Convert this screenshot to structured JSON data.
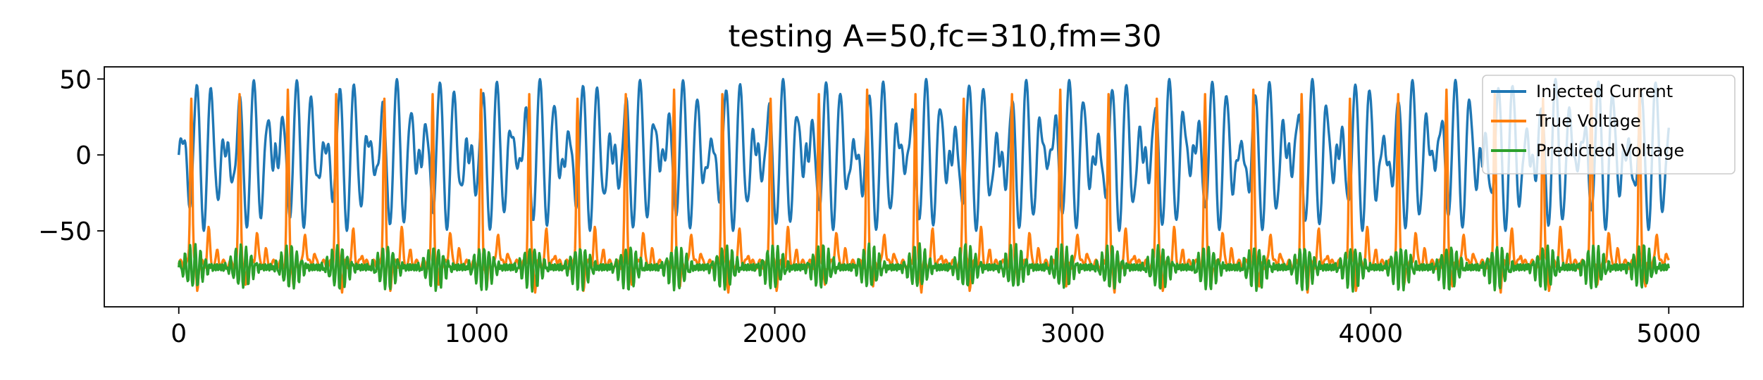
{
  "chart_data": {
    "type": "line",
    "title": "testing A=50,fc=310,fm=30",
    "xlabel": "",
    "ylabel": "",
    "xlim": [
      -250,
      5250
    ],
    "ylim": [
      -100,
      58
    ],
    "x_ticks": [
      0,
      1000,
      2000,
      3000,
      4000,
      5000
    ],
    "x_tick_labels": [
      "0",
      "1000",
      "2000",
      "3000",
      "4000",
      "5000"
    ],
    "y_ticks": [
      50,
      0,
      -50
    ],
    "y_tick_labels": [
      "50",
      "0",
      "−50"
    ],
    "grid": false,
    "legend_position": "top-right",
    "x_range": [
      0,
      5000
    ],
    "series": [
      {
        "name": "Injected Current",
        "color": "#1f77b4",
        "description_values": {
          "amplitude": 50,
          "carrier_period": 48,
          "modulation_period": 162,
          "center": 0
        }
      },
      {
        "name": "True Voltage",
        "color": "#ff7f0e",
        "description_values": {
          "baseline": -72,
          "spike_peak": 40,
          "spike_trough": -88,
          "period": 162
        }
      },
      {
        "name": "Predicted Voltage",
        "color": "#2ca02c",
        "description_values": {
          "baseline": -74,
          "ripple_min": -90,
          "ripple_max": -64,
          "period": 162
        }
      }
    ]
  }
}
